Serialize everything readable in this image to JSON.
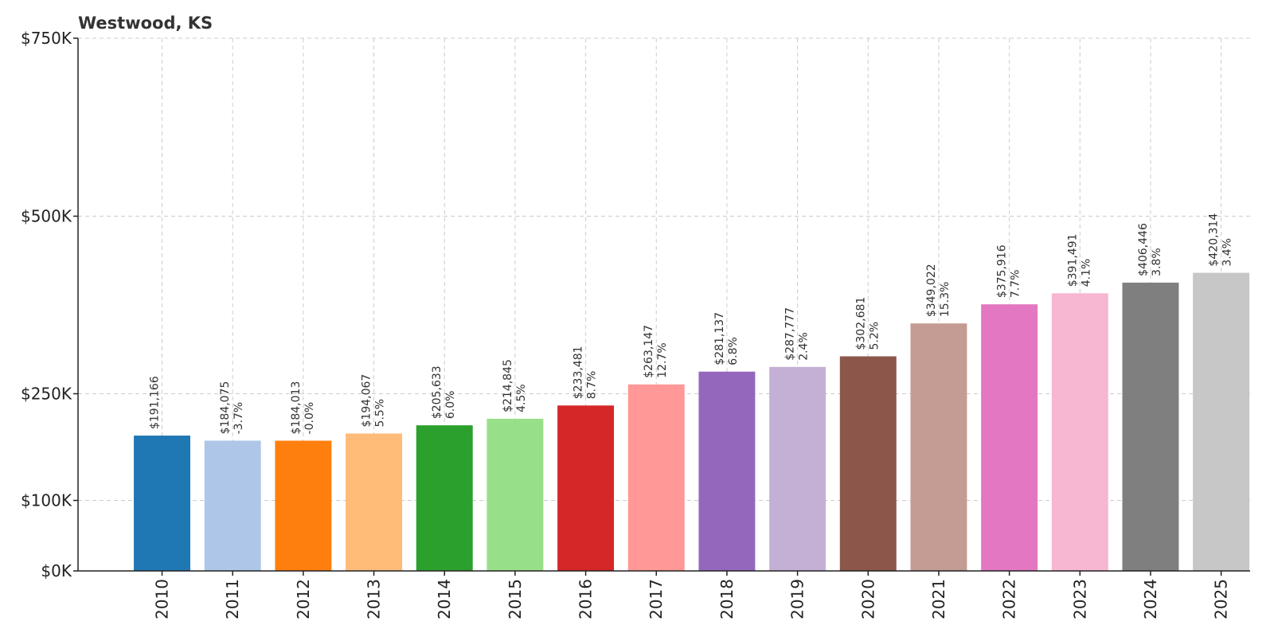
{
  "chart_data": {
    "type": "bar",
    "title": "Westwood, KS",
    "categories": [
      "2010",
      "2011",
      "2012",
      "2013",
      "2014",
      "2015",
      "2016",
      "2017",
      "2018",
      "2019",
      "2020",
      "2021",
      "2022",
      "2023",
      "2024",
      "2025"
    ],
    "values": [
      191166,
      184075,
      184013,
      194067,
      205633,
      214845,
      233481,
      263147,
      281137,
      287777,
      302681,
      349022,
      375916,
      391491,
      406446,
      420314
    ],
    "value_labels": [
      "$191,166",
      "$184,075",
      "$184,013",
      "$194,067",
      "$205,633",
      "$214,845",
      "$233,481",
      "$263,147",
      "$281,137",
      "$287,777",
      "$302,681",
      "$349,022",
      "$375,916",
      "$391,491",
      "$406,446",
      "$420,314"
    ],
    "change_labels": [
      "",
      "-3.7%",
      "-0.0%",
      "5.5%",
      "6.0%",
      "4.5%",
      "8.7%",
      "12.7%",
      "6.8%",
      "2.4%",
      "5.2%",
      "15.3%",
      "7.7%",
      "4.1%",
      "3.8%",
      "3.4%"
    ],
    "colors": [
      "#1f77b4",
      "#aec7e8",
      "#ff7f0e",
      "#ffbb78",
      "#2ca02c",
      "#98df8a",
      "#d62728",
      "#ff9896",
      "#9467bd",
      "#c5b0d5",
      "#8c564b",
      "#c49c94",
      "#e377c2",
      "#f7b6d2",
      "#7f7f7f",
      "#c7c7c7"
    ],
    "yticks": [
      0,
      100000,
      250000,
      500000,
      750000
    ],
    "ytick_labels": [
      "$0K",
      "$100K",
      "$250K",
      "$500K",
      "$750K"
    ],
    "ylim": [
      0,
      750000
    ],
    "xlabel": "",
    "ylabel": "",
    "grid": true,
    "legend": "none"
  }
}
